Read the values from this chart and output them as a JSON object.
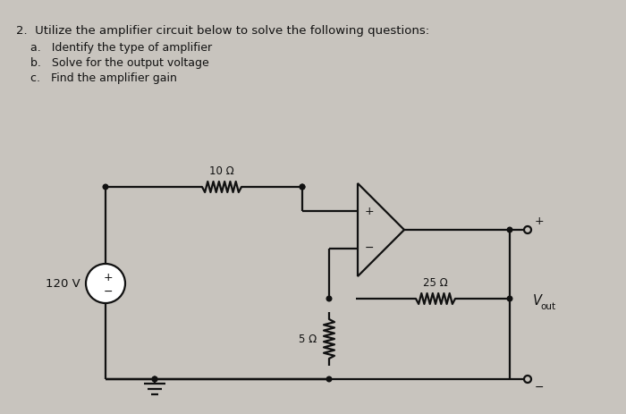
{
  "title_text": "2.  Utilize the amplifier circuit below to solve the following questions:",
  "sub_a": "a.   Identify the type of amplifier",
  "sub_b": "b.   Solve for the output voltage",
  "sub_c": "c.   Find the amplifier gain",
  "voltage_source": "120 V",
  "R1_label": "10 Ω",
  "R2_label": "5 Ω",
  "R3_label": "25 Ω",
  "bg_color": "#c8c4be",
  "text_color": "#111111",
  "line_color": "#111111",
  "circuit_bg": "#e8e4de"
}
